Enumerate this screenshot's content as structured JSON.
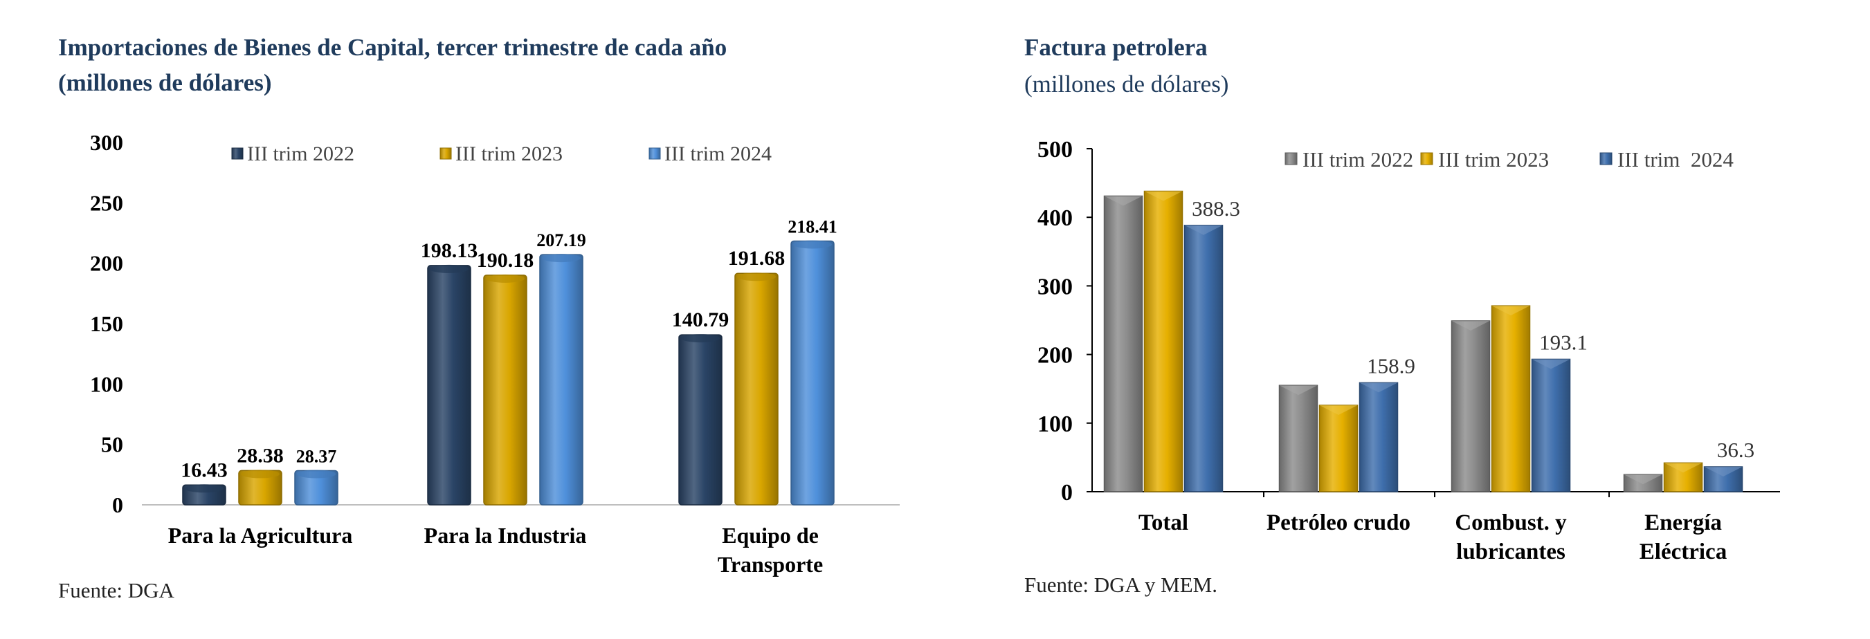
{
  "left": {
    "title_line1": "Importaciones de Bienes de Capital, tercer trimestre de cada año",
    "title_line2": "(millones de dólares)",
    "source": "Fuente: DGA",
    "chart_data": {
      "type": "bar",
      "title": "Importaciones de Bienes de Capital, tercer trimestre de cada año (millones de dólares)",
      "categories": [
        "Para la Agricultura",
        "Para la Industria",
        "Equipo de Transporte"
      ],
      "category_lines": [
        [
          "Para la Agricultura"
        ],
        [
          "Para la Industria"
        ],
        [
          "Equipo de",
          "Transporte"
        ]
      ],
      "series": [
        {
          "name": "III trim 2022",
          "values": [
            16.43,
            198.13,
            140.79
          ],
          "labels": [
            "16.43",
            "198.13",
            "140.79"
          ],
          "color": "#2a4466"
        },
        {
          "name": "III trim 2023",
          "values": [
            28.38,
            190.18,
            191.68
          ],
          "labels": [
            "28.38",
            "190.18",
            "191.68"
          ],
          "color": "#d9a600"
        },
        {
          "name": "III trim 2024",
          "values": [
            28.37,
            207.19,
            218.41
          ],
          "labels": [
            "28.37",
            "207.19",
            "218.41"
          ],
          "color": "#4f90db"
        }
      ],
      "ylim": [
        0,
        300
      ],
      "yticks": [
        "0",
        "50",
        "100",
        "150",
        "200",
        "250",
        "300"
      ],
      "legend": "top",
      "grid": false
    }
  },
  "right": {
    "title": "Factura petrolera",
    "subtitle": "(millones de dólares)",
    "source": "Fuente: DGA y MEM.",
    "chart_data": {
      "type": "bar",
      "title": "Factura petrolera (millones de dólares)",
      "categories": [
        "Total",
        "Petróleo crudo",
        "Combust. y lubricantes",
        "Energía Eléctrica"
      ],
      "category_lines": [
        [
          "Total"
        ],
        [
          "Petróleo crudo"
        ],
        [
          "Combust. y",
          "lubricantes"
        ],
        [
          "Energía",
          "Eléctrica"
        ]
      ],
      "series": [
        {
          "name": "III trim 2022",
          "values": [
            431,
            155,
            249,
            25
          ],
          "labels": [
            "",
            "",
            "",
            ""
          ],
          "color": "#8c8c8c"
        },
        {
          "name": "III trim 2023",
          "values": [
            438,
            126,
            271,
            42
          ],
          "labels": [
            "",
            "",
            "",
            ""
          ],
          "color": "#e6b000"
        },
        {
          "name": "III trim  2024",
          "values": [
            388.3,
            158.9,
            193.1,
            36.3
          ],
          "labels": [
            "388.3",
            "158.9",
            "193.1",
            "36.3"
          ],
          "color": "#3f6fad"
        }
      ],
      "ylim": [
        0,
        500
      ],
      "yticks": [
        "0",
        "100",
        "200",
        "300",
        "400",
        "500"
      ],
      "legend": "top",
      "grid": false
    }
  }
}
